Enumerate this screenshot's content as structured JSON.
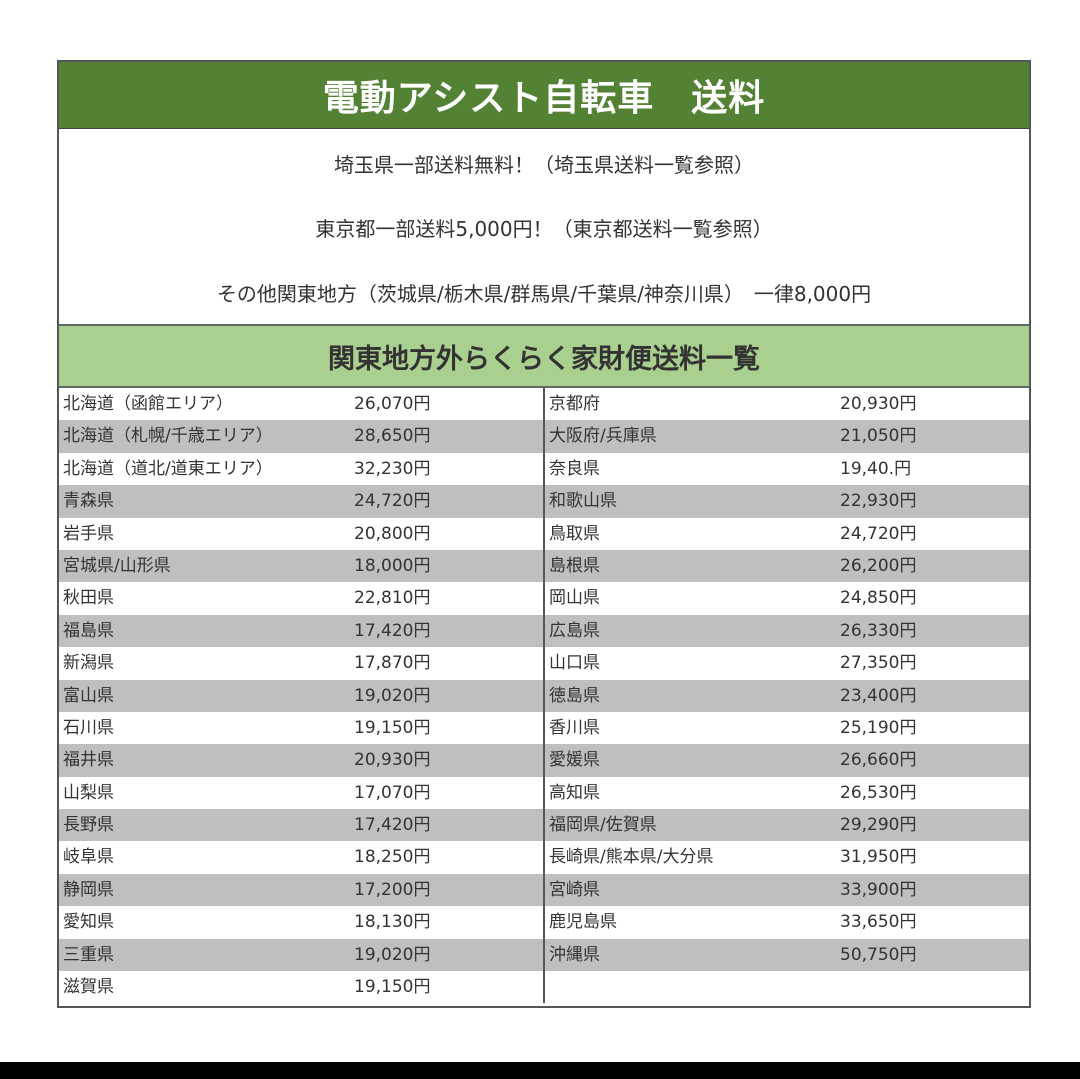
{
  "title": "電動アシスト自転車　送料",
  "info": [
    "埼玉県一部送料無料！（埼玉県送料一覧参照）",
    "東京都一部送料5,000円！（東京都送料一覧参照）",
    "その他関東地方（茨城県/栃木県/群馬県/千葉県/神奈川県）　一律8,000円"
  ],
  "subtitle": "関東地方外らくらく家財便送料一覧",
  "colors": {
    "title_bg": "#548235",
    "subtitle_bg": "#a9d08e",
    "stripe": "#bfbfbf"
  },
  "left": [
    {
      "name": "北海道（函館エリア）",
      "price": "26,070円"
    },
    {
      "name": "北海道（札幌/千歳エリア）",
      "price": "28,650円"
    },
    {
      "name": "北海道（道北/道東エリア）",
      "price": "32,230円"
    },
    {
      "name": "青森県",
      "price": "24,720円"
    },
    {
      "name": "岩手県",
      "price": "20,800円"
    },
    {
      "name": "宮城県/山形県",
      "price": "18,000円"
    },
    {
      "name": "秋田県",
      "price": "22,810円"
    },
    {
      "name": "福島県",
      "price": "17,420円"
    },
    {
      "name": "新潟県",
      "price": "17,870円"
    },
    {
      "name": "富山県",
      "price": "19,020円"
    },
    {
      "name": "石川県",
      "price": "19,150円"
    },
    {
      "name": "福井県",
      "price": "20,930円"
    },
    {
      "name": "山梨県",
      "price": "17,070円"
    },
    {
      "name": "長野県",
      "price": "17,420円"
    },
    {
      "name": "岐阜県",
      "price": "18,250円"
    },
    {
      "name": "静岡県",
      "price": "17,200円"
    },
    {
      "name": "愛知県",
      "price": "18,130円"
    },
    {
      "name": "三重県",
      "price": "19,020円"
    },
    {
      "name": "滋賀県",
      "price": "19,150円"
    }
  ],
  "right": [
    {
      "name": "京都府",
      "price": "20,930円"
    },
    {
      "name": "大阪府/兵庫県",
      "price": "21,050円"
    },
    {
      "name": "奈良県",
      "price": "19,40.円"
    },
    {
      "name": "和歌山県",
      "price": "22,930円"
    },
    {
      "name": "鳥取県",
      "price": "24,720円"
    },
    {
      "name": "島根県",
      "price": "26,200円"
    },
    {
      "name": "岡山県",
      "price": "24,850円"
    },
    {
      "name": "広島県",
      "price": "26,330円"
    },
    {
      "name": "山口県",
      "price": "27,350円"
    },
    {
      "name": "徳島県",
      "price": "23,400円"
    },
    {
      "name": "香川県",
      "price": "25,190円"
    },
    {
      "name": "愛媛県",
      "price": "26,660円"
    },
    {
      "name": "高知県",
      "price": "26,530円"
    },
    {
      "name": "福岡県/佐賀県",
      "price": "29,290円"
    },
    {
      "name": "長崎県/熊本県/大分県",
      "price": "31,950円"
    },
    {
      "name": "宮崎県",
      "price": "33,900円"
    },
    {
      "name": "鹿児島県",
      "price": "33,650円"
    },
    {
      "name": "沖縄県",
      "price": "50,750円"
    }
  ]
}
